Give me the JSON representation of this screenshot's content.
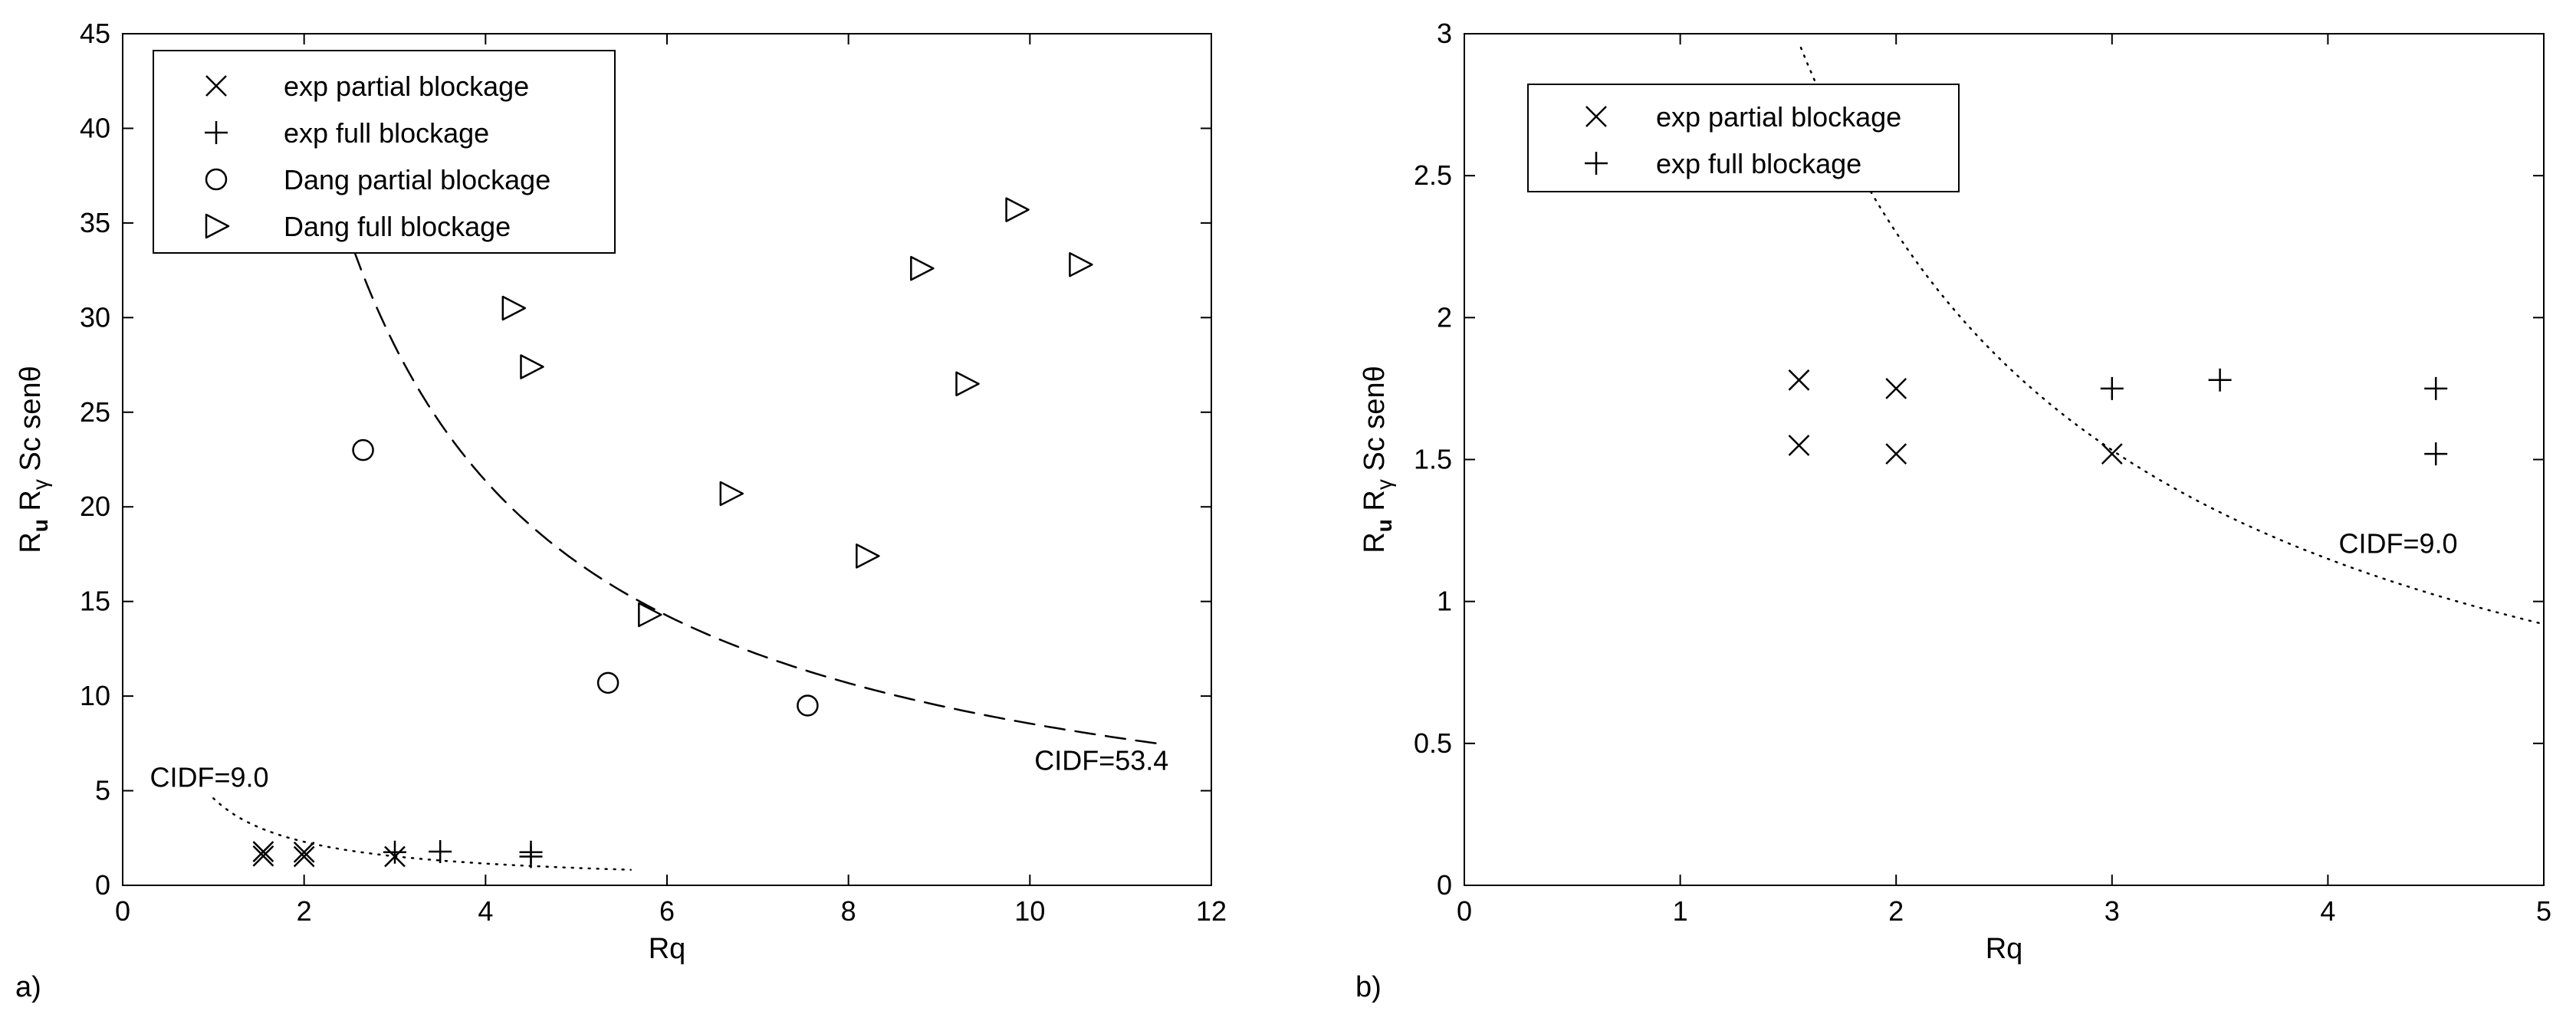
{
  "chart_data": [
    {
      "type": "scatter",
      "panel_label": "a)",
      "xlabel": "Rq",
      "ylabel": "R_u R_γ Sc senθ",
      "ylabel_parts": [
        "R",
        "u",
        " R",
        "γ",
        " Sc sen",
        "θ"
      ],
      "xlim": [
        0,
        12
      ],
      "ylim": [
        0,
        45
      ],
      "xticks": [
        0,
        2,
        4,
        6,
        8,
        10,
        12
      ],
      "yticks": [
        0,
        5,
        10,
        15,
        20,
        25,
        30,
        35,
        40,
        45
      ],
      "grid": false,
      "legend_position": "top-left",
      "series": [
        {
          "name": "exp partial blockage",
          "marker": "x",
          "x": [
            1.55,
            1.55,
            2.0,
            2.0,
            3.0
          ],
          "y": [
            1.78,
            1.55,
            1.75,
            1.52,
            1.52
          ]
        },
        {
          "name": "exp full blockage",
          "marker": "+",
          "x": [
            3.0,
            3.5,
            4.5,
            4.5
          ],
          "y": [
            1.75,
            1.78,
            1.75,
            1.52
          ]
        },
        {
          "name": "Dang partial blockage",
          "marker": "o",
          "x": [
            2.65,
            5.35,
            7.55
          ],
          "y": [
            23.0,
            10.7,
            9.5
          ]
        },
        {
          "name": "Dang full blockage",
          "marker": "triangle-right",
          "x": [
            4.3,
            4.5,
            5.8,
            6.7,
            8.2,
            8.8,
            9.3,
            9.85,
            10.55
          ],
          "y": [
            30.5,
            27.4,
            14.3,
            20.7,
            17.4,
            32.6,
            26.5,
            35.7,
            32.8
          ]
        }
      ],
      "curves": [
        {
          "label": "CIDF=53.4",
          "style": "dashed",
          "constant": 85.5,
          "formula": "y = constant / x",
          "x_range": [
            2.55,
            11.4
          ],
          "label_at": [
            10.05,
            6.1
          ],
          "label_anchor": "start"
        },
        {
          "label": "CIDF=9.0",
          "style": "dotted",
          "constant": 4.6,
          "formula": "y = constant / x",
          "x_range": [
            1.0,
            5.6
          ],
          "label_at": [
            0.3,
            5.2
          ],
          "label_anchor": "start"
        }
      ]
    },
    {
      "type": "scatter",
      "panel_label": "b)",
      "xlabel": "Rq",
      "ylabel": "R_u R_γ Sc senθ",
      "ylabel_parts": [
        "R",
        "u",
        " R",
        "γ",
        " Sc sen",
        "θ"
      ],
      "xlim": [
        0,
        5
      ],
      "ylim": [
        0,
        3
      ],
      "xticks": [
        0,
        1,
        2,
        3,
        4,
        5
      ],
      "yticks": [
        0,
        0.5,
        1,
        1.5,
        2,
        2.5,
        3
      ],
      "grid": false,
      "legend_position": "top-left",
      "series": [
        {
          "name": "exp partial blockage",
          "marker": "x",
          "x": [
            1.55,
            1.55,
            2.0,
            2.0,
            3.0
          ],
          "y": [
            1.78,
            1.55,
            1.75,
            1.52,
            1.52
          ]
        },
        {
          "name": "exp full blockage",
          "marker": "+",
          "x": [
            3.0,
            3.5,
            4.5,
            4.5
          ],
          "y": [
            1.75,
            1.78,
            1.75,
            1.52
          ]
        }
      ],
      "curves": [
        {
          "label": "CIDF=9.0",
          "style": "dotted",
          "constant": 4.6,
          "formula": "y = constant / x",
          "x_range": [
            1.53,
            5.0
          ],
          "label_at": [
            4.05,
            1.17
          ],
          "label_anchor": "start"
        }
      ]
    }
  ]
}
